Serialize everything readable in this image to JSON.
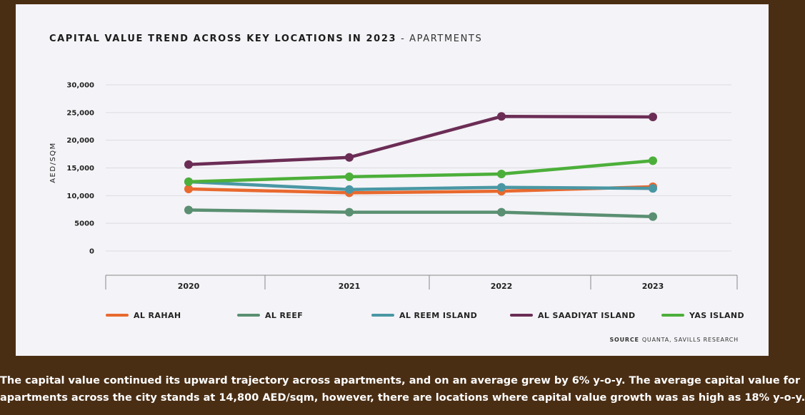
{
  "chart_data": {
    "type": "line",
    "title": "CAPITAL VALUE TREND ACROSS KEY LOCATIONS IN 2023",
    "subtitle": "APARTMENTS",
    "title_separator": "-",
    "ylabel": "AED/SQM",
    "ylim": [
      0,
      30000
    ],
    "yticks": [
      0,
      5000,
      10000,
      15000,
      20000,
      25000,
      30000
    ],
    "ytick_labels": [
      "0",
      "5000",
      "10,000",
      "15,000",
      "20,000",
      "25,000",
      "30,000"
    ],
    "categories": [
      "2020",
      "2021",
      "2022",
      "2023"
    ],
    "grid": true,
    "legend_position": "bottom",
    "series": [
      {
        "name": "AL RAHAH",
        "color": "#e8692e",
        "values": [
          11200,
          10500,
          10800,
          11600
        ]
      },
      {
        "name": "AL REEF",
        "color": "#5a8f72",
        "values": [
          7400,
          7000,
          7000,
          6200
        ]
      },
      {
        "name": "AL REEM ISLAND",
        "color": "#4a97a4",
        "values": [
          12500,
          11100,
          11500,
          11300
        ]
      },
      {
        "name": "AL SAADIYAT ISLAND",
        "color": "#6b2d55",
        "values": [
          15600,
          16900,
          24300,
          24200
        ]
      },
      {
        "name": "YAS ISLAND",
        "color": "#4caf3a",
        "values": [
          12500,
          13400,
          13900,
          16300
        ]
      }
    ],
    "source_label": "SOURCE",
    "source_text": "QUANTA, SAVILLS RESEARCH"
  },
  "caption": {
    "line1": "The capital value continued its upward trajectory across apartments, and on an average grew by 6% y-o-y. The average capital value for",
    "line2": "apartments across the city stands at 14,800 AED/sqm, however, there are locations where capital value growth was as high as 18% y-o-y."
  },
  "colors": {
    "background": "#4a2e14",
    "panel": "#f4f3f7",
    "grid": "#dcdbe0"
  }
}
